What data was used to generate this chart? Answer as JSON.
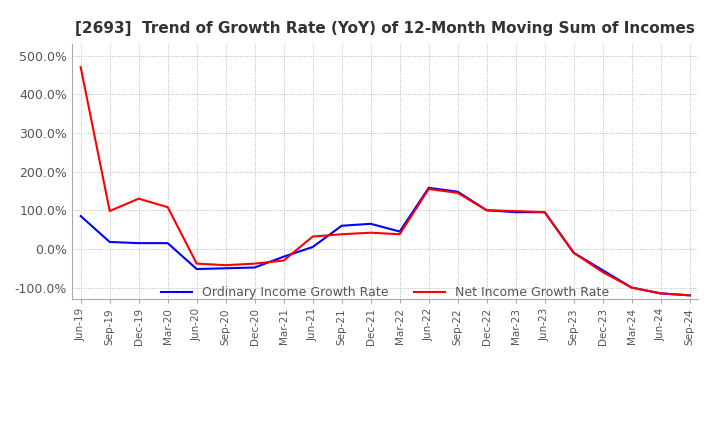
{
  "title": "[2693]  Trend of Growth Rate (YoY) of 12-Month Moving Sum of Incomes",
  "ylim": [
    -130,
    530
  ],
  "yticks": [
    -100,
    0,
    100,
    200,
    300,
    400,
    500
  ],
  "ytick_labels": [
    "-100.0%",
    "0.0%",
    "100.0%",
    "200.0%",
    "300.0%",
    "400.0%",
    "500.0%"
  ],
  "legend_labels": [
    "Ordinary Income Growth Rate",
    "Net Income Growth Rate"
  ],
  "line_colors": [
    "#0000FF",
    "#FF0000"
  ],
  "background_color": "#FFFFFF",
  "grid_color": "#AAAAAA",
  "x_labels": [
    "Jun-19",
    "Sep-19",
    "Dec-19",
    "Mar-20",
    "Jun-20",
    "Sep-20",
    "Dec-20",
    "Mar-21",
    "Jun-21",
    "Sep-21",
    "Dec-21",
    "Mar-22",
    "Jun-22",
    "Sep-22",
    "Dec-22",
    "Mar-23",
    "Jun-23",
    "Sep-23",
    "Dec-23",
    "Mar-24",
    "Jun-24",
    "Sep-24"
  ],
  "ordinary_income": [
    85,
    18,
    15,
    15,
    -52,
    -50,
    -48,
    -20,
    5,
    60,
    65,
    45,
    158,
    148,
    100,
    95,
    95,
    -10,
    -55,
    -100,
    -115,
    -120
  ],
  "net_income": [
    470,
    98,
    130,
    108,
    -38,
    -42,
    -38,
    -30,
    32,
    38,
    42,
    38,
    155,
    145,
    100,
    98,
    95,
    -10,
    -60,
    -100,
    -115,
    -120
  ]
}
